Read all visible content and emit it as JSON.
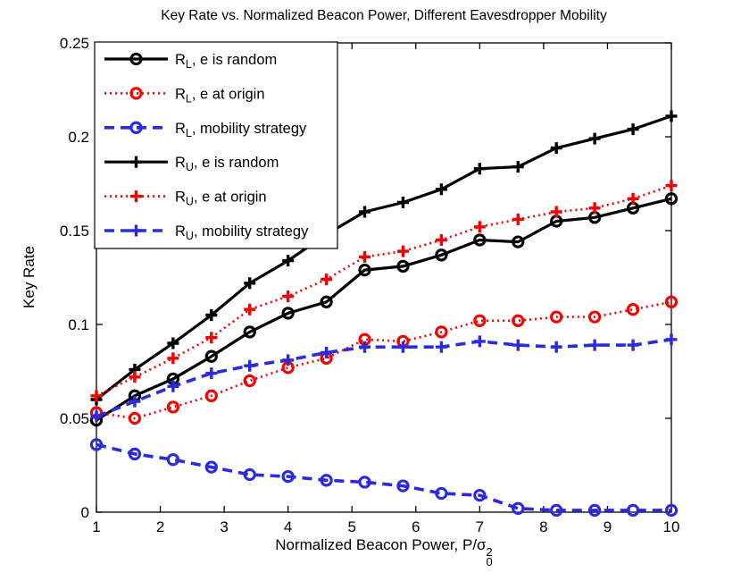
{
  "chart_data": {
    "type": "line",
    "title": "Key Rate vs. Normalized Beacon Power, Different Eavesdropper Mobility",
    "ylabel": "Key Rate",
    "xlabel": {
      "text": "Normalized Beacon Power, P/σ",
      "sup": "2",
      "sub": "0"
    },
    "xlim": [
      1,
      10
    ],
    "ylim": [
      0,
      0.25
    ],
    "x_ticks": [
      "1",
      "2",
      "3",
      "4",
      "5",
      "6",
      "7",
      "8",
      "9",
      "10"
    ],
    "x_tick_values": [
      1,
      2,
      3,
      4,
      5,
      6,
      7,
      8,
      9,
      10
    ],
    "y_ticks": [
      "0",
      "0.05",
      "0.1",
      "0.15",
      "0.2",
      "0.25"
    ],
    "y_tick_values": [
      0,
      0.05,
      0.1,
      0.15,
      0.2,
      0.25
    ],
    "grid": false,
    "legend_position": "top-left",
    "x": [
      1,
      1.6,
      2.2,
      2.8,
      3.4,
      4,
      4.6,
      5.2,
      5.8,
      6.4,
      7,
      7.6,
      8.2,
      8.8,
      9.4,
      10
    ],
    "series": [
      {
        "label": {
          "pre": "R",
          "sub": "L",
          "rest": ", e is random"
        },
        "color": "#000000",
        "line": "solid",
        "marker": "circle",
        "values": [
          0.049,
          0.062,
          0.071,
          0.083,
          0.096,
          0.106,
          0.112,
          0.129,
          0.131,
          0.137,
          0.145,
          0.144,
          0.155,
          0.157,
          0.162,
          0.167
        ]
      },
      {
        "label": {
          "pre": "R",
          "sub": "L",
          "rest": ", e at origin"
        },
        "color": "#f40000",
        "line": "dotted",
        "marker": "circle",
        "values": [
          0.053,
          0.05,
          0.056,
          0.062,
          0.07,
          0.077,
          0.082,
          0.092,
          0.091,
          0.096,
          0.102,
          0.102,
          0.104,
          0.104,
          0.108,
          0.112
        ]
      },
      {
        "label": {
          "pre": "R",
          "sub": "L",
          "rest": ", mobility strategy"
        },
        "color": "#2a2adf",
        "line": "dashed",
        "marker": "circle",
        "values": [
          0.036,
          0.031,
          0.028,
          0.024,
          0.02,
          0.019,
          0.017,
          0.016,
          0.014,
          0.01,
          0.009,
          0.002,
          0.001,
          0.001,
          0.001,
          0.001
        ]
      },
      {
        "label": {
          "pre": "R",
          "sub": "U",
          "rest": ", e is random"
        },
        "color": "#000000",
        "line": "solid",
        "marker": "plus",
        "values": [
          0.06,
          0.076,
          0.09,
          0.105,
          0.122,
          0.134,
          0.148,
          0.16,
          0.165,
          0.172,
          0.183,
          0.184,
          0.194,
          0.199,
          0.204,
          0.211
        ]
      },
      {
        "label": {
          "pre": "R",
          "sub": "U",
          "rest": ", e at origin"
        },
        "color": "#f40000",
        "line": "dotted",
        "marker": "plus",
        "values": [
          0.062,
          0.072,
          0.082,
          0.093,
          0.108,
          0.115,
          0.124,
          0.136,
          0.139,
          0.145,
          0.152,
          0.156,
          0.16,
          0.162,
          0.167,
          0.174
        ]
      },
      {
        "label": {
          "pre": "R",
          "sub": "U",
          "rest": ", mobility strategy"
        },
        "color": "#2a2adf",
        "line": "dashed",
        "marker": "plus",
        "values": [
          0.051,
          0.059,
          0.067,
          0.074,
          0.078,
          0.081,
          0.085,
          0.088,
          0.088,
          0.088,
          0.091,
          0.089,
          0.088,
          0.089,
          0.089,
          0.092
        ]
      }
    ]
  }
}
